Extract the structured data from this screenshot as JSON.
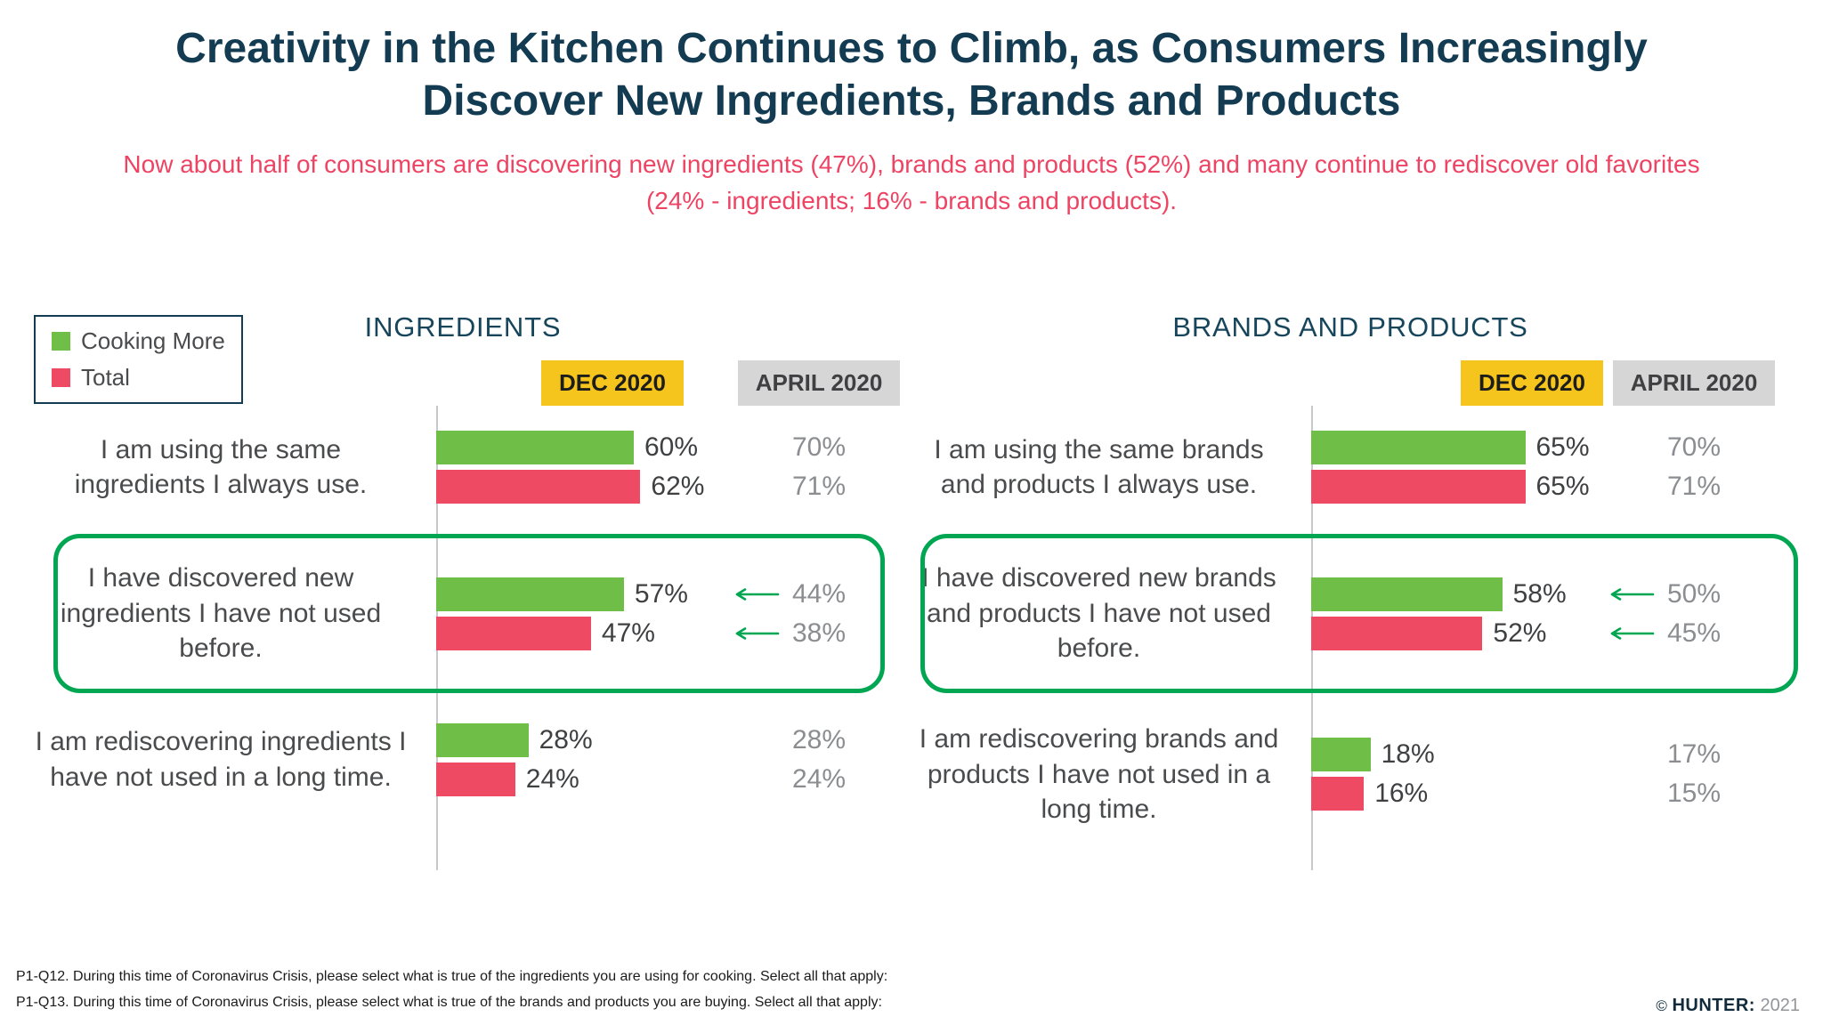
{
  "title_lines": [
    "Creativity in the Kitchen Continues to Climb, as Consumers Increasingly",
    "Discover New Ingredients, Brands and Products"
  ],
  "subtitle": "Now about half of consumers are discovering new ingredients (47%), brands and products (52%) and many continue to rediscover old favorites (24% - ingredients; 16% - brands and products).",
  "legend": {
    "items": [
      {
        "label": "Cooking More",
        "color": "#6FBE47"
      },
      {
        "label": "Total",
        "color": "#EF4A63"
      }
    ]
  },
  "columns": {
    "dec": "DEC 2020",
    "april": "APRIL 2020"
  },
  "colors": {
    "title_navy": "#133B52",
    "subtitle_pink": "#EE4464",
    "cooking_more_green": "#6FBE47",
    "total_pink": "#EF4A63",
    "dec_header_bg": "#F5C51D",
    "april_header_bg": "#D6D6D6",
    "highlight_outline_green": "#00A651",
    "april_value_gray": "#8B8D90"
  },
  "chart_data": [
    {
      "type": "bar",
      "orientation": "horizontal",
      "title": "INGREDIENTS",
      "series": [
        "Cooking More",
        "Total"
      ],
      "columns": [
        "DEC 2020",
        "APRIL 2020"
      ],
      "unit": "%",
      "rows": [
        {
          "label": "I am using the same ingredients I always use.",
          "dec": [
            60,
            62
          ],
          "april": [
            70,
            71
          ],
          "highlighted": false
        },
        {
          "label": "I have discovered new ingredients I have not used before.",
          "dec": [
            57,
            47
          ],
          "april": [
            44,
            38
          ],
          "highlighted": true
        },
        {
          "label": "I am rediscovering ingredients I have not used in a long time.",
          "dec": [
            28,
            24
          ],
          "april": [
            28,
            24
          ],
          "highlighted": false
        }
      ]
    },
    {
      "type": "bar",
      "orientation": "horizontal",
      "title": "BRANDS AND PRODUCTS",
      "series": [
        "Cooking More",
        "Total"
      ],
      "columns": [
        "DEC 2020",
        "APRIL 2020"
      ],
      "unit": "%",
      "rows": [
        {
          "label": "I am using the same brands and products I always use.",
          "dec": [
            65,
            65
          ],
          "april": [
            70,
            71
          ],
          "highlighted": false
        },
        {
          "label": "I have discovered new brands and products I have not used before.",
          "dec": [
            58,
            52
          ],
          "april": [
            50,
            45
          ],
          "highlighted": true
        },
        {
          "label": "I am rediscovering brands and products I have not used in a long time.",
          "dec": [
            18,
            16
          ],
          "april": [
            17,
            15
          ],
          "highlighted": false
        }
      ]
    }
  ],
  "footnotes": [
    "P1-Q12. During this time of Coronavirus Crisis, please select what is true of the ingredients you are using for cooking. Select all that apply:",
    "P1-Q13. During this time of Coronavirus Crisis, please select what is true of the brands and products you are buying. Select all that apply:"
  ],
  "credit": {
    "symbol": "©",
    "brand": "HUNTER:",
    "year": "2021"
  }
}
